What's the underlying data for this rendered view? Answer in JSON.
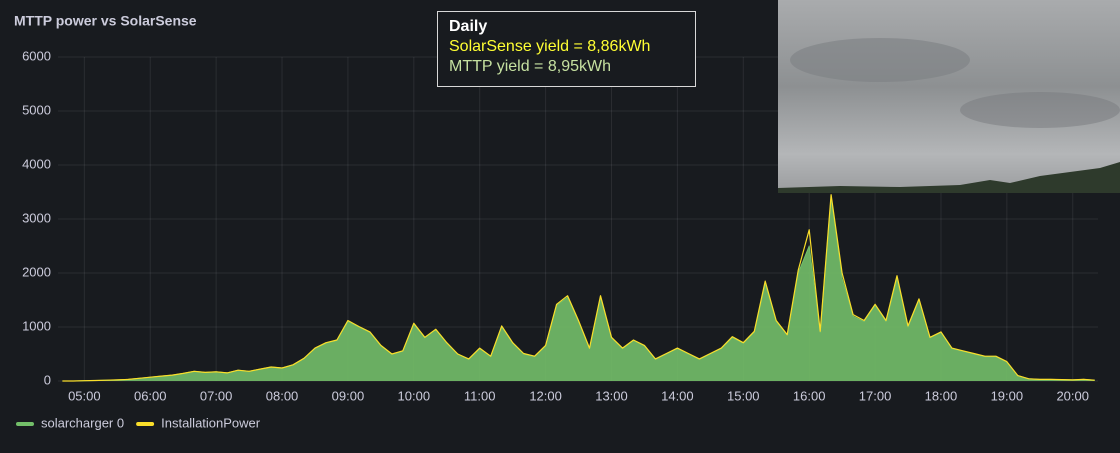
{
  "chart_data": {
    "type": "area",
    "title": "MTTP power vs SolarSense",
    "annotation": {
      "title": "Daily",
      "lines": [
        "SolarSense yield = 8,86kWh",
        "MTTP yield = 8,95kWh"
      ]
    },
    "x": [
      "04:40",
      "04:50",
      "05:00",
      "05:10",
      "05:20",
      "05:30",
      "05:40",
      "05:50",
      "06:00",
      "06:10",
      "06:20",
      "06:30",
      "06:40",
      "06:50",
      "07:00",
      "07:10",
      "07:20",
      "07:30",
      "07:40",
      "07:50",
      "08:00",
      "08:10",
      "08:20",
      "08:30",
      "08:40",
      "08:50",
      "09:00",
      "09:10",
      "09:20",
      "09:30",
      "09:40",
      "09:50",
      "10:00",
      "10:10",
      "10:20",
      "10:30",
      "10:40",
      "10:50",
      "11:00",
      "11:10",
      "11:20",
      "11:30",
      "11:40",
      "11:50",
      "12:00",
      "12:10",
      "12:20",
      "12:30",
      "12:40",
      "12:50",
      "13:00",
      "13:10",
      "13:20",
      "13:30",
      "13:40",
      "13:50",
      "14:00",
      "14:10",
      "14:20",
      "14:30",
      "14:40",
      "14:50",
      "15:00",
      "15:10",
      "15:20",
      "15:30",
      "15:40",
      "15:50",
      "16:00",
      "16:10",
      "16:20",
      "16:30",
      "16:40",
      "16:50",
      "17:00",
      "17:10",
      "17:20",
      "17:30",
      "17:40",
      "17:50",
      "18:00",
      "18:10",
      "18:20",
      "18:30",
      "18:40",
      "18:50",
      "19:00",
      "19:10",
      "19:20",
      "19:30",
      "19:40",
      "19:50",
      "20:00",
      "20:10",
      "20:20"
    ],
    "series": [
      {
        "name": "solarcharger 0",
        "color": "#73bf69",
        "values": [
          0,
          0,
          5,
          10,
          15,
          20,
          30,
          50,
          70,
          90,
          110,
          140,
          180,
          160,
          170,
          150,
          200,
          180,
          220,
          260,
          240,
          300,
          420,
          600,
          700,
          750,
          1100,
          1000,
          900,
          650,
          500,
          550,
          1050,
          800,
          950,
          700,
          500,
          400,
          600,
          450,
          1000,
          700,
          500,
          450,
          650,
          1400,
          1550,
          1100,
          600,
          1550,
          800,
          600,
          750,
          650,
          400,
          500,
          600,
          500,
          400,
          500,
          600,
          800,
          700,
          900,
          1800,
          1100,
          850,
          2000,
          2500,
          900,
          3400,
          1900,
          1200,
          1100,
          1400,
          1100,
          1900,
          1000,
          1500,
          800,
          900,
          600,
          550,
          500,
          450,
          450,
          350,
          100,
          40,
          30,
          30,
          25,
          20,
          30,
          15
        ]
      },
      {
        "name": "InstallationPower",
        "color": "#fade2a",
        "values": [
          0,
          0,
          5,
          10,
          15,
          20,
          30,
          50,
          70,
          90,
          110,
          140,
          180,
          160,
          170,
          150,
          200,
          180,
          220,
          260,
          240,
          300,
          420,
          610,
          710,
          760,
          1120,
          1010,
          910,
          660,
          500,
          560,
          1070,
          810,
          960,
          710,
          500,
          410,
          610,
          460,
          1020,
          710,
          510,
          460,
          660,
          1420,
          1580,
          1120,
          610,
          1580,
          810,
          610,
          760,
          660,
          410,
          510,
          610,
          510,
          410,
          510,
          610,
          820,
          710,
          920,
          1850,
          1120,
          860,
          2050,
          2800,
          920,
          3450,
          2000,
          1230,
          1120,
          1420,
          1120,
          1950,
          1020,
          1520,
          810,
          910,
          610,
          560,
          510,
          460,
          460,
          360,
          100,
          40,
          30,
          30,
          25,
          20,
          30,
          15
        ]
      }
    ],
    "xlim": [
      "04:36",
      "20:23"
    ],
    "xticks": [
      "05:00",
      "06:00",
      "07:00",
      "08:00",
      "09:00",
      "10:00",
      "11:00",
      "12:00",
      "13:00",
      "14:00",
      "15:00",
      "16:00",
      "17:00",
      "18:00",
      "19:00",
      "20:00"
    ],
    "ylim": [
      0,
      6000
    ],
    "yticks": [
      0,
      1000,
      2000,
      3000,
      4000,
      5000,
      6000
    ],
    "grid": true
  }
}
